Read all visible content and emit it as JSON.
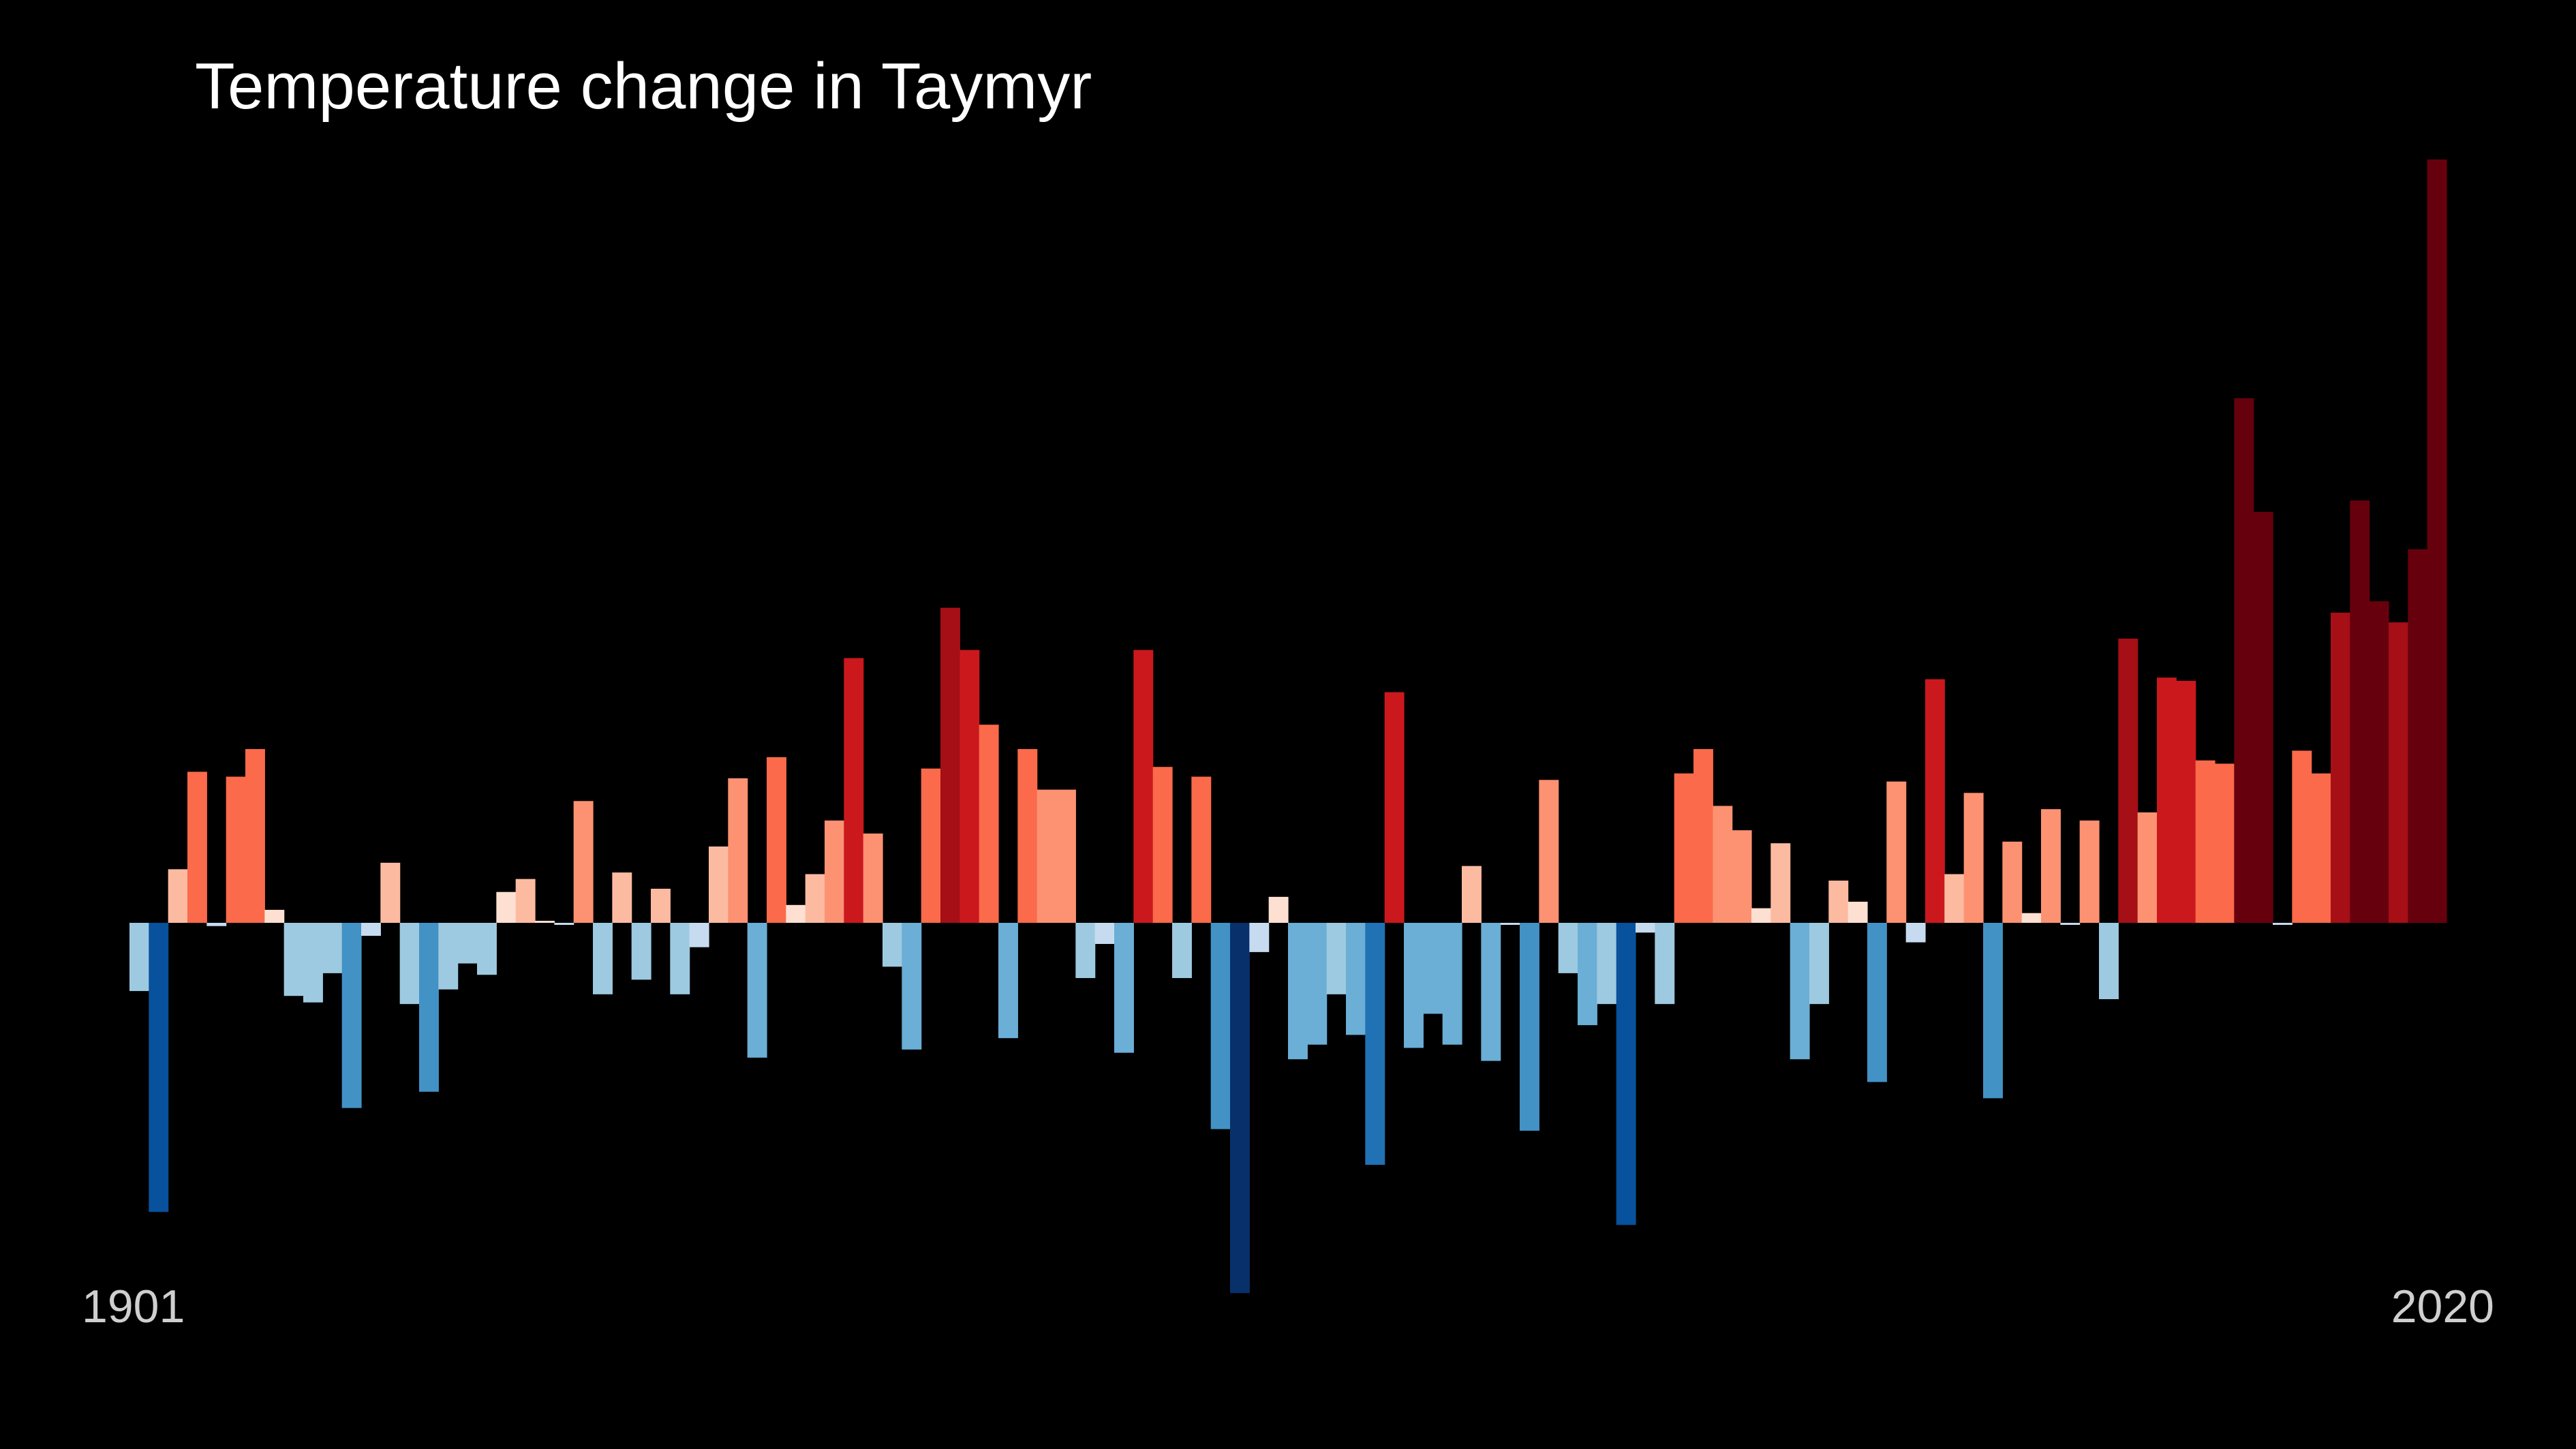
{
  "chart_data": {
    "type": "bar",
    "title": "Temperature change in Taymyr",
    "x_start_label": "1901",
    "x_end_label": "2020",
    "x": [
      1901,
      1902,
      1903,
      1904,
      1905,
      1906,
      1907,
      1908,
      1909,
      1910,
      1911,
      1912,
      1913,
      1914,
      1915,
      1916,
      1917,
      1918,
      1919,
      1920,
      1921,
      1922,
      1923,
      1924,
      1925,
      1926,
      1927,
      1928,
      1929,
      1930,
      1931,
      1932,
      1933,
      1934,
      1935,
      1936,
      1937,
      1938,
      1939,
      1940,
      1941,
      1942,
      1943,
      1944,
      1945,
      1946,
      1947,
      1948,
      1949,
      1950,
      1951,
      1952,
      1953,
      1954,
      1955,
      1956,
      1957,
      1958,
      1959,
      1960,
      1961,
      1962,
      1963,
      1964,
      1965,
      1966,
      1967,
      1968,
      1969,
      1970,
      1971,
      1972,
      1973,
      1974,
      1975,
      1976,
      1977,
      1978,
      1979,
      1980,
      1981,
      1982,
      1983,
      1984,
      1985,
      1986,
      1987,
      1988,
      1989,
      1990,
      1991,
      1992,
      1993,
      1994,
      1995,
      1996,
      1997,
      1998,
      1999,
      2000,
      2001,
      2002,
      2003,
      2004,
      2005,
      2006,
      2007,
      2008,
      2009,
      2010,
      2011,
      2012,
      2013,
      2014,
      2015,
      2016,
      2017,
      2018,
      2019,
      2020
    ],
    "values": [
      -0.42,
      -1.78,
      0.33,
      0.93,
      -0.02,
      0.9,
      1.07,
      0.08,
      -0.45,
      -0.49,
      -0.31,
      -1.14,
      -0.08,
      0.37,
      -0.5,
      -1.04,
      -0.41,
      -0.25,
      -0.32,
      0.19,
      0.27,
      0,
      -0.01,
      0.75,
      -0.44,
      0.31,
      -0.35,
      0.21,
      -0.44,
      -0.15,
      0.47,
      0.89,
      -0.83,
      1.02,
      0.11,
      0.3,
      0.63,
      1.63,
      0.55,
      -0.27,
      -0.78,
      0.95,
      1.94,
      1.68,
      1.22,
      -0.71,
      1.07,
      0.82,
      0.82,
      -0.34,
      -0.13,
      -0.8,
      1.68,
      0.96,
      -0.34,
      0.9,
      -1.27,
      -2.28,
      -0.18,
      0.16,
      -0.84,
      -0.75,
      -0.44,
      -0.69,
      -1.49,
      1.42,
      -0.77,
      -0.56,
      -0.75,
      0.35,
      -0.85,
      -0.01,
      -1.28,
      0.88,
      -0.31,
      -0.63,
      -0.5,
      -1.86,
      -0.06,
      -0.5,
      0.92,
      1.07,
      0.72,
      0.57,
      0.09,
      0.49,
      -0.84,
      -0.5,
      0.26,
      0.13,
      -0.98,
      0.87,
      -0.12,
      1.5,
      0.3,
      0.8,
      -1.08,
      0.5,
      0.06,
      0.7,
      -0.01,
      0.63,
      -0.47,
      1.75,
      0.68,
      1.51,
      1.49,
      1.0,
      0.98,
      3.23,
      2.53,
      -0.01,
      1.06,
      0.92,
      1.91,
      2.6,
      1.98,
      1.85,
      2.3,
      4.7
    ],
    "y_zero_line": false,
    "grid": false,
    "legend": "none",
    "palette": {
      "background": "#000000",
      "negative": [
        "#c6dbef",
        "#9ecae1",
        "#6baed6",
        "#4292c6",
        "#2171b5",
        "#08519c",
        "#08306b"
      ],
      "positive": [
        "#fee0d2",
        "#fcbba1",
        "#fc9272",
        "#fb6a4a",
        "#cb181d",
        "#a50f15",
        "#67000d"
      ]
    }
  }
}
